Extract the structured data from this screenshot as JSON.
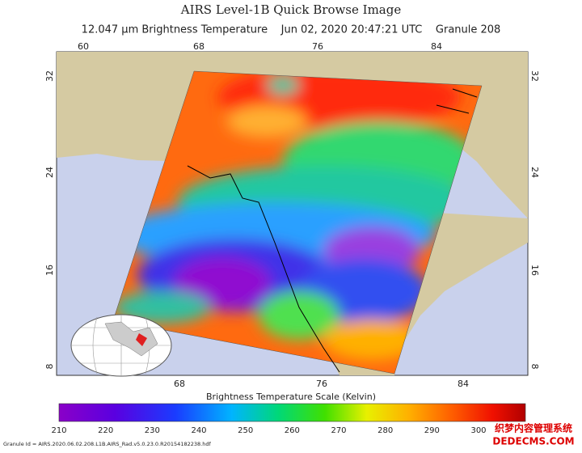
{
  "header": {
    "title": "AIRS Level-1B Quick Browse Image",
    "subtitle": "12.047 µm Brightness Temperature    Jun 02, 2020 20:47:21 UTC    Granule 208"
  },
  "map": {
    "top_lon_labels": [
      "60",
      "68",
      "76",
      "84"
    ],
    "bottom_lon_labels": [
      "68",
      "76",
      "84"
    ],
    "left_lat_labels": [
      "32",
      "24",
      "16",
      "8"
    ],
    "right_lat_labels": [
      "32",
      "24",
      "16",
      "8"
    ]
  },
  "colorbar": {
    "label": "Brightness Temperature Scale (Kelvin)",
    "ticks": [
      210,
      220,
      230,
      240,
      250,
      260,
      270,
      280,
      290,
      300
    ]
  },
  "footer": {
    "granule_id": "Granule Id = AIRS.2020.06.02.208.L1B.AIRS_Rad.v5.0.23.0.R20154182238.hdf"
  },
  "watermark": {
    "name": "织梦内容管理系统",
    "url": "DEDECMS.COM"
  }
}
